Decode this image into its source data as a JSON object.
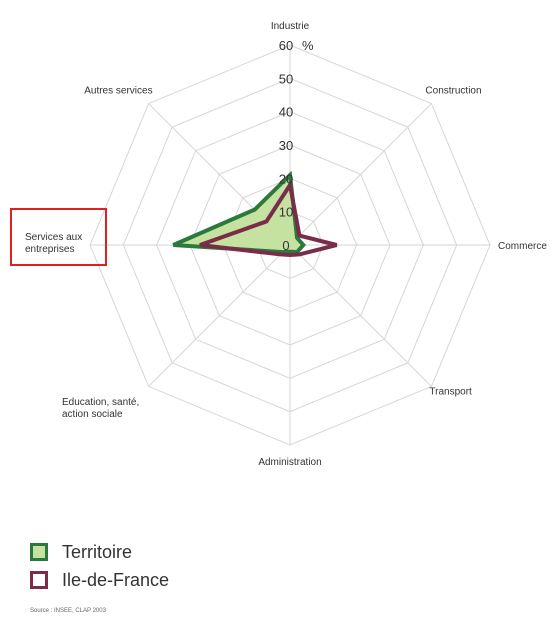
{
  "chart_data": {
    "type": "radar",
    "axes": [
      "Industrie",
      "Construction",
      "Commerce",
      "Transport",
      "Administration",
      "Education, santé, action sociale",
      "Services aux entreprises",
      "Autres services"
    ],
    "axis_label_lines": [
      [
        "Industrie"
      ],
      [
        "Construction"
      ],
      [
        "Commerce"
      ],
      [
        "Transport"
      ],
      [
        "Administration"
      ],
      [
        "Education, santé,",
        "action sociale"
      ],
      [
        "Services aux",
        "entreprises"
      ],
      [
        "Autres services"
      ]
    ],
    "rmax": 60,
    "ticks": [
      0,
      10,
      20,
      30,
      40,
      50,
      60
    ],
    "tick_labels": [
      "0",
      "10",
      "20",
      "30",
      "40",
      "50",
      "60"
    ],
    "unit": "%",
    "series": [
      {
        "name": "Territoire",
        "values": [
          21,
          3,
          4,
          3,
          2,
          3,
          35,
          15
        ],
        "fill": "#c6e2a1",
        "stroke": "#2b7a3c"
      },
      {
        "name": "Ile-de-France",
        "values": [
          18,
          4,
          14,
          4,
          3,
          4,
          27,
          10
        ],
        "fill": "none",
        "stroke": "#7a2d4a"
      }
    ],
    "grid": true
  },
  "legend": {
    "items": [
      {
        "label": "Territoire",
        "fill": "#c6e2a1",
        "border": "#2b7a3c"
      },
      {
        "label": "Ile-de-France",
        "fill": "#ffffff",
        "border": "#7a2d4a"
      }
    ]
  },
  "source": "Source : INSEE, CLAP 2003",
  "highlight_color": "#e02020"
}
